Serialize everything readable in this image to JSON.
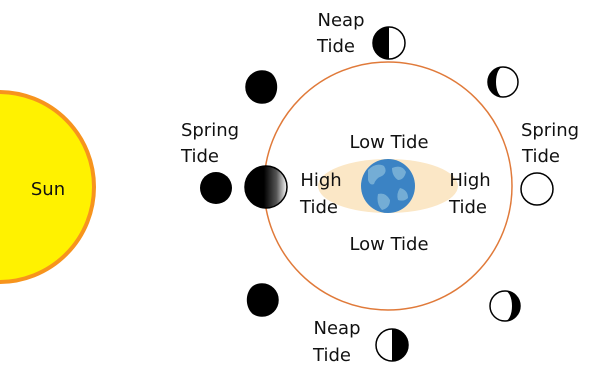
{
  "colors": {
    "sun_fill": "#fff200",
    "sun_outline": "#f7941d",
    "orbit": "#e07a3a",
    "bulge_fill": "#fbe7c6",
    "earth_ocean": "#3b83c4",
    "earth_land": "#7fb5d9",
    "moon_dark": "#000000",
    "moon_light": "#ffffff",
    "text": "#111111"
  },
  "labels": {
    "sun": "Sun",
    "neap_top_1": "Neap",
    "neap_top_2": "Tide",
    "neap_bottom_1": "Neap",
    "neap_bottom_2": "Tide",
    "spring_left_1": "Spring",
    "spring_left_2": "Tide",
    "spring_right_1": "Spring",
    "spring_right_2": "Tide",
    "low_top": "Low Tide",
    "low_bottom": "Low Tide",
    "high_left_1": "High",
    "high_left_2": "Tide",
    "high_right_1": "High",
    "high_right_2": "Tide"
  },
  "moon_phases": [
    {
      "position": "left",
      "phase": "new moon",
      "icon": "new-moon-icon"
    },
    {
      "position": "upper-left",
      "phase": "waxing crescent",
      "icon": "crescent-moon-icon"
    },
    {
      "position": "top",
      "phase": "first quarter",
      "icon": "half-moon-icon"
    },
    {
      "position": "upper-right",
      "phase": "waxing gibbous",
      "icon": "gibbous-moon-icon"
    },
    {
      "position": "right",
      "phase": "full moon",
      "icon": "full-moon-icon"
    },
    {
      "position": "lower-right",
      "phase": "waning gibbous",
      "icon": "gibbous-moon-icon"
    },
    {
      "position": "bottom",
      "phase": "last quarter",
      "icon": "half-moon-icon"
    },
    {
      "position": "lower-left",
      "phase": "waning crescent",
      "icon": "crescent-moon-icon"
    }
  ]
}
